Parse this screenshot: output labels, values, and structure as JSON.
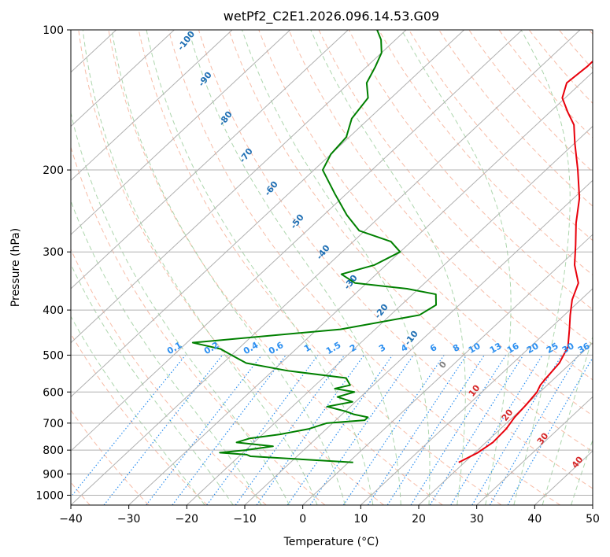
{
  "chart_data": {
    "type": "line",
    "diagram": "skew-T log-P",
    "title": "wetPf2_C2E1.2026.096.14.53.G09",
    "xlabel": "Temperature (°C)",
    "ylabel": "Pressure (hPa)",
    "xlim": [
      -40,
      50
    ],
    "ylim": [
      1050,
      100
    ],
    "y_scale": "log",
    "grid": true,
    "x_ticks": [
      -40,
      -30,
      -20,
      -10,
      0,
      10,
      20,
      30,
      40,
      50
    ],
    "y_ticks": [
      100,
      200,
      300,
      400,
      500,
      600,
      700,
      800,
      900,
      1000
    ],
    "isotherm_skew_deg_per_decade": 86,
    "dry_adiabat_labels": [
      "-100",
      "-90",
      "-80",
      "-70",
      "-60",
      "-50",
      "-40",
      "-30",
      "-20",
      "-10",
      "0",
      "10",
      "20",
      "30",
      "40"
    ],
    "mixing_ratio_labels": [
      "0.1",
      "0.2",
      "0.4",
      "0.6",
      "1",
      "1.5",
      "2",
      "3",
      "4",
      "6",
      "8",
      "10",
      "13",
      "16",
      "20",
      "25",
      "30",
      "36"
    ],
    "colors": {
      "temperature": "#e8000b",
      "dewpoint": "#008000",
      "isotherm": "#b0b0b0",
      "isobar": "#b0b0b0",
      "dry_adiabat": "#f4a58a",
      "moist_adiabat": "#9fcf9f",
      "mixing_ratio": "#2a8ef0",
      "dry_label_cold": "#1f6fb4",
      "dry_label_warm": "#d62728",
      "mixing_label": "#2a8ef0"
    },
    "series": [
      {
        "name": "Temperature",
        "p": [
          850,
          810,
          770,
          720,
          680,
          640,
          600,
          580,
          560,
          520,
          480,
          440,
          410,
          380,
          350,
          320,
          290,
          260,
          230,
          200,
          175,
          160,
          150,
          140,
          130,
          120,
          112,
          105,
          100
        ],
        "t": [
          19.0,
          20.5,
          21.2,
          21.0,
          20.3,
          20.0,
          19.5,
          18.8,
          18.5,
          18.0,
          16.5,
          13.5,
          11.0,
          8.5,
          6.5,
          2.5,
          -1.0,
          -5.0,
          -9.0,
          -14.5,
          -20.0,
          -23.5,
          -27.0,
          -30.5,
          -32.5,
          -32.0,
          -32.0,
          -32.5,
          -32.5
        ]
      },
      {
        "name": "Dewpoint",
        "p": [
          850,
          825,
          818,
          810,
          800,
          785,
          770,
          755,
          740,
          720,
          700,
          690,
          680,
          670,
          660,
          645,
          630,
          615,
          600,
          590,
          580,
          560,
          540,
          520,
          500,
          485,
          470,
          440,
          410,
          390,
          370,
          360,
          350,
          335,
          320,
          300,
          285,
          270,
          250,
          225,
          200,
          185,
          170,
          155,
          140,
          130,
          120,
          112,
          105,
          100
        ],
        "t": [
          0.8,
          -18.0,
          -19.0,
          -24.0,
          -20.0,
          -16.0,
          -23.0,
          -21.5,
          -17.0,
          -13.0,
          -11.0,
          -5.0,
          -5.0,
          -8.0,
          -10.0,
          -14.0,
          -10.5,
          -14.0,
          -12.0,
          -16.0,
          -14.0,
          -16.0,
          -27.5,
          -36.0,
          -40.0,
          -43.0,
          -49.0,
          -26.0,
          -15.0,
          -14.0,
          -16.0,
          -22.0,
          -32.0,
          -36.0,
          -32.0,
          -30.0,
          -33.5,
          -41.0,
          -46.0,
          -52.0,
          -58.5,
          -60.0,
          -60.5,
          -63.0,
          -64.0,
          -67.0,
          -68.5,
          -70.0,
          -72.5,
          -75.0
        ]
      }
    ]
  }
}
